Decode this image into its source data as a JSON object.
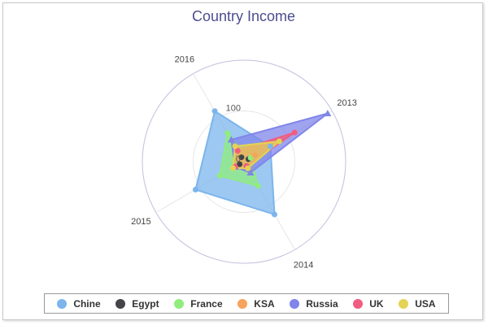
{
  "chart_data": {
    "type": "radar",
    "title": "Country Income",
    "categories": [
      "2013",
      "2014",
      "2015",
      "2016"
    ],
    "radial_tick_labels": [
      "0",
      "100"
    ],
    "radial_tick_values": [
      0,
      100
    ],
    "rmax": 200,
    "grid": true,
    "legend_position": "bottom",
    "series": [
      {
        "name": "Chine",
        "color": "#7cb5ec",
        "values": [
          60,
          120,
          110,
          115
        ]
      },
      {
        "name": "Egypt",
        "color": "#434348",
        "values": [
          10,
          10,
          10,
          10
        ]
      },
      {
        "name": "France",
        "color": "#90ed7d",
        "values": [
          15,
          55,
          55,
          65
        ]
      },
      {
        "name": "KSA",
        "color": "#f7a35c",
        "values": [
          25,
          15,
          20,
          25
        ]
      },
      {
        "name": "Russia",
        "color": "#8085e9",
        "values": [
          190,
          25,
          20,
          50
        ]
      },
      {
        "name": "UK",
        "color": "#f15c80",
        "values": [
          115,
          10,
          20,
          25
        ]
      },
      {
        "name": "USA",
        "color": "#e4d354",
        "values": [
          80,
          15,
          25,
          35
        ]
      }
    ]
  }
}
